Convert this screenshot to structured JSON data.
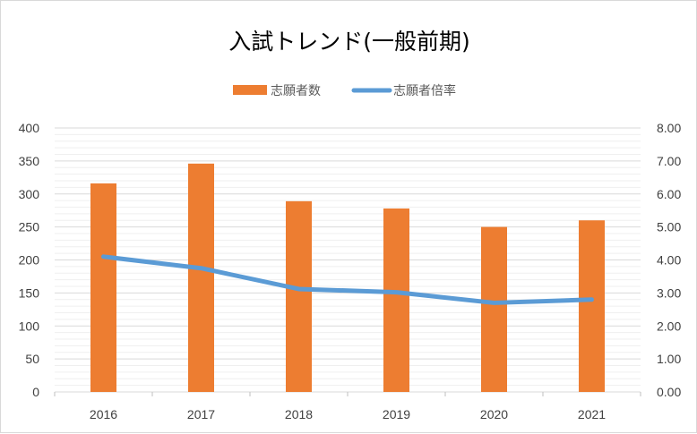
{
  "chart_data": {
    "type": "bar",
    "title": "入試トレンド(一般前期)",
    "categories": [
      "2016",
      "2017",
      "2018",
      "2019",
      "2020",
      "2021"
    ],
    "series": [
      {
        "name": "志願者数",
        "type": "bar",
        "axis": "left",
        "color": "#ED7D31",
        "values": [
          316,
          346,
          289,
          278,
          250,
          260
        ]
      },
      {
        "name": "志願者倍率",
        "type": "line",
        "axis": "right",
        "color": "#5B9BD5",
        "values": [
          4.1,
          3.75,
          3.12,
          3.02,
          2.7,
          2.8
        ]
      }
    ],
    "y_left": {
      "min": 0,
      "max": 400,
      "step": 50,
      "ticks": [
        "0",
        "50",
        "100",
        "150",
        "200",
        "250",
        "300",
        "350",
        "400"
      ]
    },
    "y_right": {
      "min": 0,
      "max": 8,
      "step": 1,
      "ticks": [
        "0.00",
        "1.00",
        "2.00",
        "3.00",
        "4.00",
        "5.00",
        "6.00",
        "7.00",
        "8.00"
      ]
    },
    "grid": true,
    "legend": "top"
  }
}
